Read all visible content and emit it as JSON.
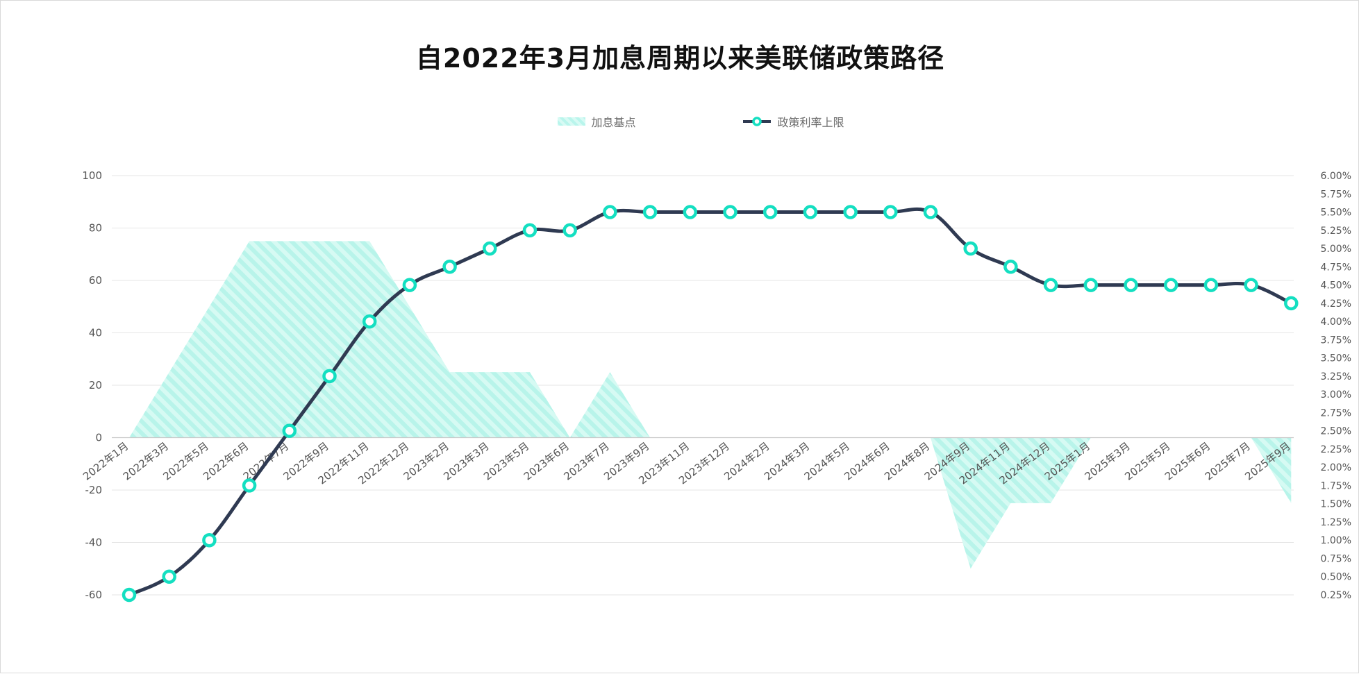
{
  "colors": {
    "line": "#2f3a52",
    "marker_stroke": "#14dfc1",
    "area": "#b9f5ec",
    "grid": "#e6e6e6",
    "axis_text": "#555555"
  },
  "chart_data": {
    "type": "line",
    "title": "自2022年3月加息周期以来美联储政策路径",
    "categories": [
      "2022年1月",
      "2022年3月",
      "2022年5月",
      "2022年6月",
      "2022年7月",
      "2022年9月",
      "2022年11月",
      "2022年12月",
      "2023年2月",
      "2023年3月",
      "2023年5月",
      "2023年6月",
      "2023年7月",
      "2023年9月",
      "2023年11月",
      "2023年12月",
      "2024年2月",
      "2024年3月",
      "2024年5月",
      "2024年6月",
      "2024年8月",
      "2024年9月",
      "2024年11月",
      "2024年12月",
      "2025年1月",
      "2025年3月",
      "2025年5月",
      "2025年6月",
      "2025年7月",
      "2025年9月"
    ],
    "series": [
      {
        "name": "加息基点",
        "type": "area",
        "axis": "left",
        "values": [
          0,
          25,
          50,
          75,
          75,
          75,
          75,
          50,
          25,
          25,
          25,
          0,
          25,
          0,
          0,
          0,
          0,
          0,
          0,
          0,
          0,
          -50,
          -25,
          -25,
          0,
          0,
          0,
          0,
          0,
          -25
        ]
      },
      {
        "name": "政策利率上限",
        "type": "line",
        "axis": "right",
        "values": [
          0.25,
          0.5,
          1.0,
          1.75,
          2.5,
          3.25,
          4.0,
          4.5,
          4.75,
          5.0,
          5.25,
          5.25,
          5.5,
          5.5,
          5.5,
          5.5,
          5.5,
          5.5,
          5.5,
          5.5,
          5.5,
          5.0,
          4.75,
          4.5,
          4.5,
          4.5,
          4.5,
          4.5,
          4.5,
          4.25
        ]
      }
    ],
    "y_left": {
      "min": -60,
      "max": 100,
      "ticks": [
        "100",
        "80",
        "60",
        "40",
        "20",
        "0",
        "-20",
        "-40",
        "-60"
      ]
    },
    "y_right": {
      "min": 0.25,
      "max": 6.0,
      "ticks": [
        "6.00%",
        "5.75%",
        "5.50%",
        "5.25%",
        "5.00%",
        "4.75%",
        "4.50%",
        "4.25%",
        "4.00%",
        "3.75%",
        "3.50%",
        "3.25%",
        "3.00%",
        "2.75%",
        "2.50%",
        "2.25%",
        "2.00%",
        "1.75%",
        "1.50%",
        "1.25%",
        "1.00%",
        "0.75%",
        "0.50%",
        "0.25%"
      ]
    },
    "grid": true,
    "legend_position": "top"
  }
}
